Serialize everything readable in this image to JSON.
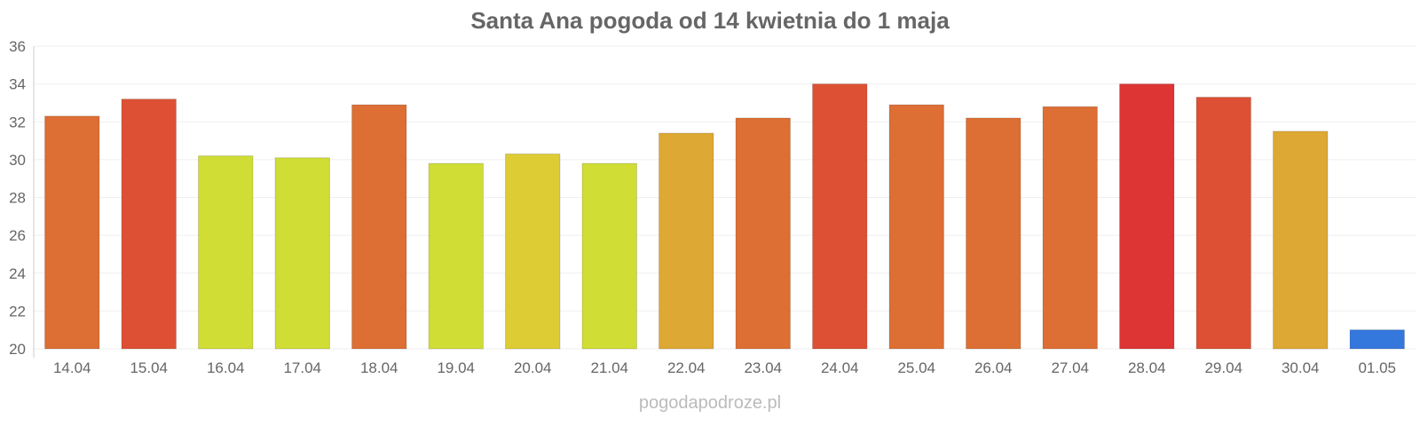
{
  "chart_data": {
    "type": "bar",
    "title": "Santa Ana pogoda od 14 kwietnia do 1 maja",
    "xlabel": "",
    "ylabel": "",
    "ylim": [
      20,
      36
    ],
    "yticks": [
      20,
      22,
      24,
      26,
      28,
      30,
      32,
      34,
      36
    ],
    "grid": true,
    "categories": [
      "14.04",
      "15.04",
      "16.04",
      "17.04",
      "18.04",
      "19.04",
      "20.04",
      "21.04",
      "22.04",
      "23.04",
      "24.04",
      "25.04",
      "26.04",
      "27.04",
      "28.04",
      "29.04",
      "30.04",
      "01.05"
    ],
    "values": [
      32.3,
      33.2,
      30.2,
      30.1,
      32.9,
      29.8,
      30.3,
      29.8,
      31.4,
      32.2,
      34.0,
      32.9,
      32.2,
      32.8,
      34.0,
      33.3,
      31.5,
      21.0
    ],
    "colors": [
      "#dd6e34",
      "#dd5034",
      "#cfdd34",
      "#cfdd34",
      "#dd6e34",
      "#cfdd34",
      "#ddcc34",
      "#cfdd34",
      "#dda834",
      "#dd6e34",
      "#dd5034",
      "#dd6e34",
      "#dd6e34",
      "#dd6e34",
      "#dd3434",
      "#dd5034",
      "#dda834",
      "#3477dd"
    ]
  },
  "watermark": "pogodapodroze.pl"
}
